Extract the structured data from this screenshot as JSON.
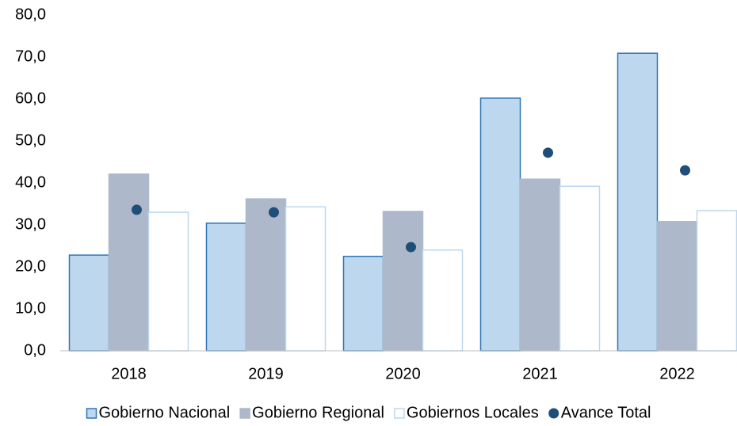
{
  "chart_data": {
    "type": "bar",
    "categories": [
      "2018",
      "2019",
      "2020",
      "2021",
      "2022"
    ],
    "series": [
      {
        "name": "Gobierno Nacional",
        "color": "#bdd7ee",
        "stroke": "#2e75b6",
        "values": [
          22.8,
          30.4,
          22.5,
          60.2,
          70.9
        ]
      },
      {
        "name": "Gobierno Regional",
        "color": "#adb9ca",
        "stroke": "#adb9ca",
        "values": [
          42.1,
          36.2,
          33.2,
          40.9,
          30.8
        ]
      },
      {
        "name": "Gobiernos Locales",
        "color": "#ffffff",
        "stroke": "#bdd7ee",
        "values": [
          33.0,
          34.3,
          24.0,
          39.2,
          33.4
        ]
      },
      {
        "name": "Avance Total",
        "type": "scatter",
        "color": "#1f4e79",
        "values": [
          33.6,
          33.0,
          24.7,
          47.2,
          43.0
        ]
      }
    ],
    "ylim": [
      0,
      80
    ],
    "yticks": [
      {
        "value": 0,
        "label": "0,0"
      },
      {
        "value": 10,
        "label": "10,0"
      },
      {
        "value": 20,
        "label": "20,0"
      },
      {
        "value": 30,
        "label": "30,0"
      },
      {
        "value": 40,
        "label": "40,0"
      },
      {
        "value": 50,
        "label": "50,0"
      },
      {
        "value": 60,
        "label": "60,0"
      },
      {
        "value": 70,
        "label": "70,0"
      },
      {
        "value": 80,
        "label": "80,0"
      }
    ],
    "grid": false,
    "legend": "bottom"
  }
}
